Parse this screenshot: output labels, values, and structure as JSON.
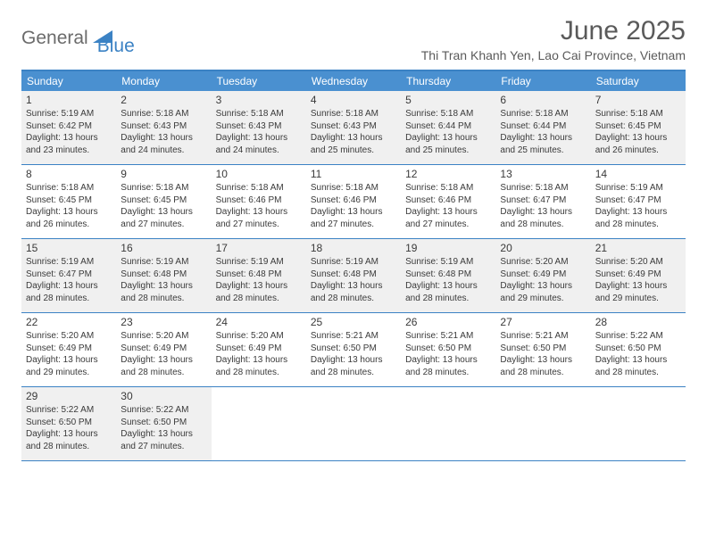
{
  "brand": {
    "part1": "General",
    "part2": "Blue"
  },
  "title": "June 2025",
  "location": "Thi Tran Khanh Yen, Lao Cai Province, Vietnam",
  "colors": {
    "accent": "#3b82c4",
    "header_bg": "#4a90d0",
    "shaded_bg": "#f0f0f0",
    "text": "#3a3a3a",
    "title_text": "#5a5a5a"
  },
  "weekdays": [
    "Sunday",
    "Monday",
    "Tuesday",
    "Wednesday",
    "Thursday",
    "Friday",
    "Saturday"
  ],
  "weeks": [
    {
      "shaded": true,
      "days": [
        {
          "n": "1",
          "sr": "5:19 AM",
          "ss": "6:42 PM",
          "dl": "13 hours and 23 minutes."
        },
        {
          "n": "2",
          "sr": "5:18 AM",
          "ss": "6:43 PM",
          "dl": "13 hours and 24 minutes."
        },
        {
          "n": "3",
          "sr": "5:18 AM",
          "ss": "6:43 PM",
          "dl": "13 hours and 24 minutes."
        },
        {
          "n": "4",
          "sr": "5:18 AM",
          "ss": "6:43 PM",
          "dl": "13 hours and 25 minutes."
        },
        {
          "n": "5",
          "sr": "5:18 AM",
          "ss": "6:44 PM",
          "dl": "13 hours and 25 minutes."
        },
        {
          "n": "6",
          "sr": "5:18 AM",
          "ss": "6:44 PM",
          "dl": "13 hours and 25 minutes."
        },
        {
          "n": "7",
          "sr": "5:18 AM",
          "ss": "6:45 PM",
          "dl": "13 hours and 26 minutes."
        }
      ]
    },
    {
      "shaded": false,
      "days": [
        {
          "n": "8",
          "sr": "5:18 AM",
          "ss": "6:45 PM",
          "dl": "13 hours and 26 minutes."
        },
        {
          "n": "9",
          "sr": "5:18 AM",
          "ss": "6:45 PM",
          "dl": "13 hours and 27 minutes."
        },
        {
          "n": "10",
          "sr": "5:18 AM",
          "ss": "6:46 PM",
          "dl": "13 hours and 27 minutes."
        },
        {
          "n": "11",
          "sr": "5:18 AM",
          "ss": "6:46 PM",
          "dl": "13 hours and 27 minutes."
        },
        {
          "n": "12",
          "sr": "5:18 AM",
          "ss": "6:46 PM",
          "dl": "13 hours and 27 minutes."
        },
        {
          "n": "13",
          "sr": "5:18 AM",
          "ss": "6:47 PM",
          "dl": "13 hours and 28 minutes."
        },
        {
          "n": "14",
          "sr": "5:19 AM",
          "ss": "6:47 PM",
          "dl": "13 hours and 28 minutes."
        }
      ]
    },
    {
      "shaded": true,
      "days": [
        {
          "n": "15",
          "sr": "5:19 AM",
          "ss": "6:47 PM",
          "dl": "13 hours and 28 minutes."
        },
        {
          "n": "16",
          "sr": "5:19 AM",
          "ss": "6:48 PM",
          "dl": "13 hours and 28 minutes."
        },
        {
          "n": "17",
          "sr": "5:19 AM",
          "ss": "6:48 PM",
          "dl": "13 hours and 28 minutes."
        },
        {
          "n": "18",
          "sr": "5:19 AM",
          "ss": "6:48 PM",
          "dl": "13 hours and 28 minutes."
        },
        {
          "n": "19",
          "sr": "5:19 AM",
          "ss": "6:48 PM",
          "dl": "13 hours and 28 minutes."
        },
        {
          "n": "20",
          "sr": "5:20 AM",
          "ss": "6:49 PM",
          "dl": "13 hours and 29 minutes."
        },
        {
          "n": "21",
          "sr": "5:20 AM",
          "ss": "6:49 PM",
          "dl": "13 hours and 29 minutes."
        }
      ]
    },
    {
      "shaded": false,
      "days": [
        {
          "n": "22",
          "sr": "5:20 AM",
          "ss": "6:49 PM",
          "dl": "13 hours and 29 minutes."
        },
        {
          "n": "23",
          "sr": "5:20 AM",
          "ss": "6:49 PM",
          "dl": "13 hours and 28 minutes."
        },
        {
          "n": "24",
          "sr": "5:20 AM",
          "ss": "6:49 PM",
          "dl": "13 hours and 28 minutes."
        },
        {
          "n": "25",
          "sr": "5:21 AM",
          "ss": "6:50 PM",
          "dl": "13 hours and 28 minutes."
        },
        {
          "n": "26",
          "sr": "5:21 AM",
          "ss": "6:50 PM",
          "dl": "13 hours and 28 minutes."
        },
        {
          "n": "27",
          "sr": "5:21 AM",
          "ss": "6:50 PM",
          "dl": "13 hours and 28 minutes."
        },
        {
          "n": "28",
          "sr": "5:22 AM",
          "ss": "6:50 PM",
          "dl": "13 hours and 28 minutes."
        }
      ]
    },
    {
      "shaded": true,
      "days": [
        {
          "n": "29",
          "sr": "5:22 AM",
          "ss": "6:50 PM",
          "dl": "13 hours and 28 minutes."
        },
        {
          "n": "30",
          "sr": "5:22 AM",
          "ss": "6:50 PM",
          "dl": "13 hours and 27 minutes."
        },
        {
          "n": "",
          "sr": "",
          "ss": "",
          "dl": ""
        },
        {
          "n": "",
          "sr": "",
          "ss": "",
          "dl": ""
        },
        {
          "n": "",
          "sr": "",
          "ss": "",
          "dl": ""
        },
        {
          "n": "",
          "sr": "",
          "ss": "",
          "dl": ""
        },
        {
          "n": "",
          "sr": "",
          "ss": "",
          "dl": ""
        }
      ]
    }
  ],
  "labels": {
    "sunrise": "Sunrise:",
    "sunset": "Sunset:",
    "daylight": "Daylight:"
  }
}
